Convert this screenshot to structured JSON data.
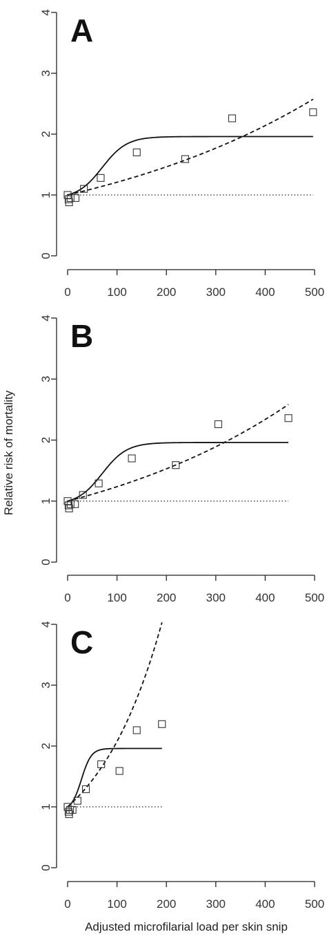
{
  "figure": {
    "ylabel": "Relative risk of mortality",
    "xlabel": "Adjusted microfilarial load per skin snip"
  },
  "chart_data": [
    {
      "type": "scatter",
      "panel": "A",
      "ylim": [
        0,
        4
      ],
      "y_ticks": [
        "0",
        "1",
        "2",
        "3",
        "4"
      ],
      "xlim": [
        0,
        500
      ],
      "x_ticks": [
        "0",
        "100",
        "200",
        "300",
        "400",
        "500"
      ],
      "reference_y": 1,
      "points": [
        [
          0,
          1.0
        ],
        [
          2,
          0.93
        ],
        [
          3,
          0.88
        ],
        [
          6,
          0.95
        ],
        [
          16,
          0.95
        ],
        [
          33,
          1.1
        ],
        [
          67,
          1.28
        ],
        [
          140,
          1.7
        ],
        [
          238,
          1.59
        ],
        [
          333,
          2.26
        ],
        [
          497,
          2.36
        ]
      ],
      "dashed_curve_exponent": 0.001902,
      "solid_curve": {
        "min": 1.0,
        "max": 1.96,
        "midpoint": 70,
        "steepness": 0.04
      },
      "curve_x_max": 497
    },
    {
      "type": "scatter",
      "panel": "B",
      "ylim": [
        0,
        4
      ],
      "y_ticks": [
        "0",
        "1",
        "2",
        "3",
        "4"
      ],
      "xlim": [
        0,
        500
      ],
      "x_ticks": [
        "0",
        "100",
        "200",
        "300",
        "400",
        "500"
      ],
      "reference_y": 1,
      "points": [
        [
          0,
          1.0
        ],
        [
          2,
          0.93
        ],
        [
          3,
          0.88
        ],
        [
          6,
          0.95
        ],
        [
          15,
          0.95
        ],
        [
          31,
          1.1
        ],
        [
          63,
          1.29
        ],
        [
          130,
          1.7
        ],
        [
          219,
          1.59
        ],
        [
          305,
          2.26
        ],
        [
          447,
          2.36
        ]
      ],
      "dashed_curve_exponent": 0.002123,
      "solid_curve": {
        "min": 1.0,
        "max": 1.96,
        "midpoint": 70,
        "steepness": 0.04
      },
      "curve_x_max": 447
    },
    {
      "type": "scatter",
      "panel": "C",
      "ylim": [
        0,
        4
      ],
      "y_ticks": [
        "0",
        "1",
        "2",
        "3",
        "4"
      ],
      "xlim": [
        0,
        500
      ],
      "x_ticks": [
        "0",
        "100",
        "200",
        "300",
        "400",
        "500"
      ],
      "reference_y": 1,
      "points": [
        [
          0,
          1.0
        ],
        [
          2,
          0.92
        ],
        [
          3,
          0.88
        ],
        [
          5,
          0.95
        ],
        [
          10,
          0.95
        ],
        [
          20,
          1.1
        ],
        [
          37,
          1.29
        ],
        [
          68,
          1.7
        ],
        [
          105,
          1.59
        ],
        [
          140,
          2.26
        ],
        [
          191,
          2.36
        ]
      ],
      "dashed_curve_exponent": 0.0073,
      "solid_curve": {
        "min": 1.0,
        "max": 1.96,
        "midpoint": 28,
        "steepness": 0.1
      },
      "curve_x_max": 191
    }
  ]
}
